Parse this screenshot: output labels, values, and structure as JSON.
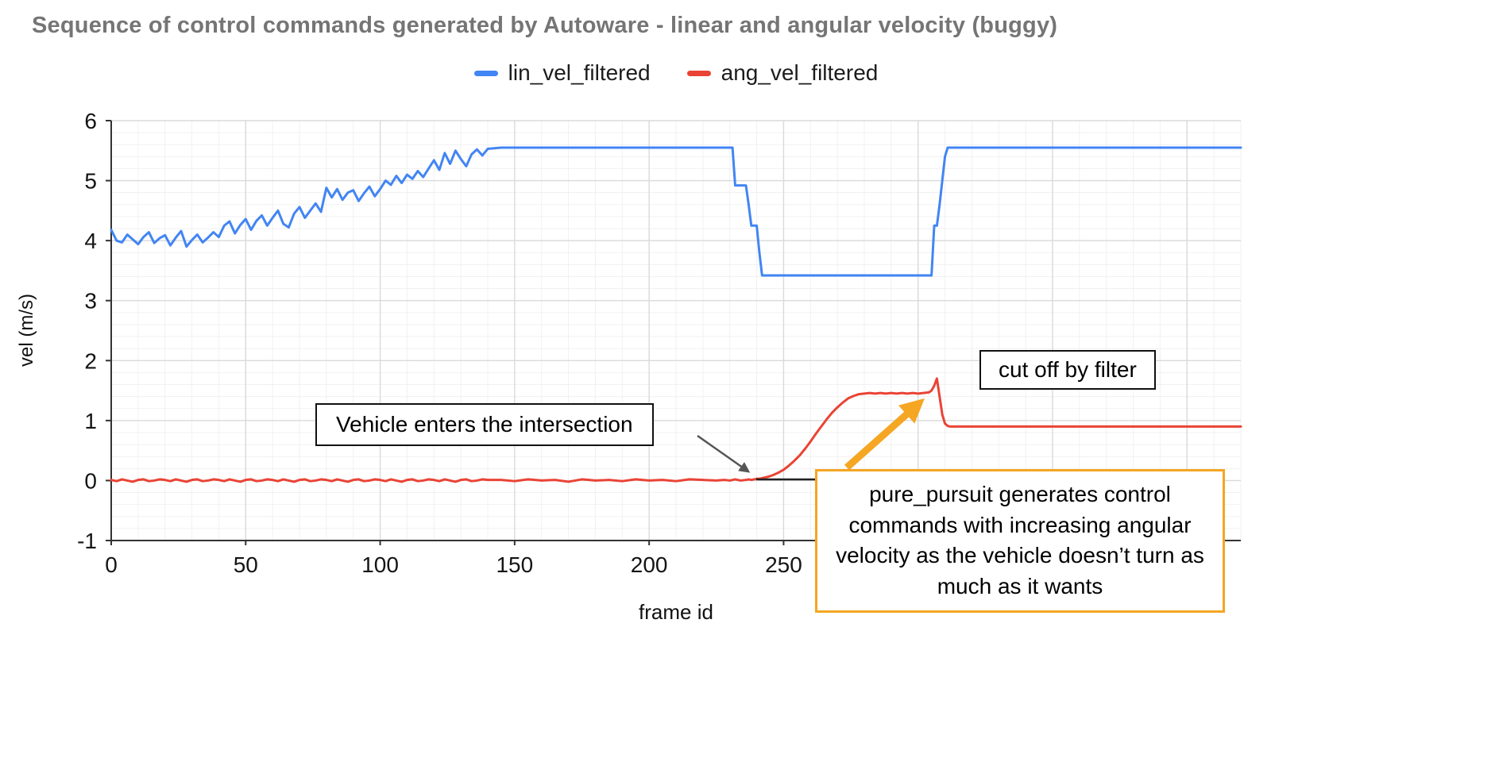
{
  "title": "Sequence of control commands generated by Autoware - linear and angular velocity (buggy)",
  "chart_data": {
    "type": "line",
    "title": "Sequence of control commands generated by Autoware - linear and angular velocity (buggy)",
    "xlabel": "frame id",
    "ylabel": "vel (m/s)",
    "xlim": [
      0,
      420
    ],
    "ylim": [
      -1,
      6
    ],
    "x_ticks": [
      0,
      50,
      100,
      150,
      200,
      250,
      300,
      350,
      400
    ],
    "y_ticks": [
      -1,
      0,
      1,
      2,
      3,
      4,
      5,
      6
    ],
    "grid": true,
    "legend_position": "top-center",
    "x": [
      0,
      2,
      4,
      6,
      8,
      10,
      12,
      14,
      16,
      18,
      20,
      22,
      24,
      26,
      28,
      30,
      32,
      34,
      36,
      38,
      40,
      42,
      44,
      46,
      48,
      50,
      52,
      54,
      56,
      58,
      60,
      62,
      64,
      66,
      68,
      70,
      72,
      74,
      76,
      78,
      80,
      82,
      84,
      86,
      88,
      90,
      92,
      94,
      96,
      98,
      100,
      102,
      104,
      106,
      108,
      110,
      112,
      114,
      116,
      118,
      120,
      122,
      124,
      126,
      128,
      130,
      132,
      134,
      136,
      138,
      140,
      145,
      150,
      155,
      160,
      165,
      170,
      175,
      180,
      185,
      190,
      195,
      200,
      205,
      210,
      215,
      220,
      225,
      228,
      230,
      231,
      232,
      234,
      236,
      237,
      238,
      239,
      240,
      241,
      242,
      243,
      244,
      246,
      248,
      250,
      252,
      254,
      256,
      258,
      260,
      262,
      264,
      266,
      268,
      270,
      272,
      274,
      276,
      278,
      280,
      282,
      284,
      286,
      288,
      290,
      292,
      294,
      296,
      298,
      300,
      302,
      304,
      305,
      306,
      307,
      308,
      309,
      310,
      311,
      312,
      314,
      316,
      324,
      332,
      340,
      348,
      356,
      364,
      372,
      380,
      388,
      396,
      404,
      412,
      420
    ],
    "series": [
      {
        "name": "lin_vel_filtered",
        "color": "#4285f4",
        "values": [
          4.18,
          4.0,
          3.97,
          4.1,
          4.02,
          3.94,
          4.06,
          4.14,
          3.96,
          4.04,
          4.09,
          3.92,
          4.05,
          4.16,
          3.9,
          4.01,
          4.1,
          3.97,
          4.05,
          4.14,
          4.06,
          4.25,
          4.32,
          4.12,
          4.26,
          4.36,
          4.18,
          4.33,
          4.42,
          4.25,
          4.38,
          4.5,
          4.28,
          4.22,
          4.45,
          4.56,
          4.38,
          4.5,
          4.62,
          4.48,
          4.88,
          4.72,
          4.86,
          4.68,
          4.8,
          4.84,
          4.66,
          4.79,
          4.9,
          4.74,
          4.86,
          5.0,
          4.93,
          5.08,
          4.96,
          5.1,
          5.03,
          5.16,
          5.06,
          5.2,
          5.34,
          5.18,
          5.46,
          5.28,
          5.5,
          5.36,
          5.24,
          5.44,
          5.52,
          5.42,
          5.53,
          5.55,
          5.55,
          5.55,
          5.55,
          5.55,
          5.55,
          5.55,
          5.55,
          5.55,
          5.55,
          5.55,
          5.55,
          5.55,
          5.55,
          5.55,
          5.55,
          5.55,
          5.55,
          5.55,
          5.55,
          4.92,
          4.92,
          4.92,
          4.6,
          4.25,
          4.25,
          4.25,
          3.8,
          3.42,
          3.42,
          3.42,
          3.42,
          3.42,
          3.42,
          3.42,
          3.42,
          3.42,
          3.42,
          3.42,
          3.42,
          3.42,
          3.42,
          3.42,
          3.42,
          3.42,
          3.42,
          3.42,
          3.42,
          3.42,
          3.42,
          3.42,
          3.42,
          3.42,
          3.42,
          3.42,
          3.42,
          3.42,
          3.42,
          3.42,
          3.42,
          3.42,
          3.42,
          4.25,
          4.25,
          4.6,
          5.0,
          5.4,
          5.55,
          5.55,
          5.55,
          5.55,
          5.55,
          5.55,
          5.55,
          5.55,
          5.55,
          5.55,
          5.55,
          5.55,
          5.55,
          5.55,
          5.55,
          5.55,
          5.55
        ]
      },
      {
        "name": "ang_vel_filtered",
        "color": "#ea4335",
        "values": [
          0.01,
          -0.01,
          0.02,
          0.0,
          -0.02,
          0.01,
          0.02,
          -0.01,
          0.0,
          0.02,
          0.01,
          -0.01,
          0.02,
          0.0,
          -0.02,
          0.01,
          0.02,
          -0.01,
          0.0,
          0.02,
          0.01,
          -0.01,
          0.02,
          0.0,
          -0.02,
          0.01,
          0.02,
          -0.01,
          0.0,
          0.02,
          0.01,
          -0.01,
          0.02,
          0.0,
          -0.02,
          0.01,
          0.02,
          -0.01,
          0.0,
          0.02,
          0.01,
          -0.01,
          0.02,
          0.0,
          -0.02,
          0.01,
          0.02,
          -0.01,
          0.0,
          0.02,
          0.01,
          -0.01,
          0.02,
          0.0,
          -0.02,
          0.01,
          0.02,
          -0.01,
          0.0,
          0.02,
          0.01,
          -0.01,
          0.02,
          0.0,
          -0.02,
          0.01,
          0.02,
          -0.01,
          0.0,
          0.02,
          0.01,
          0.01,
          -0.01,
          0.02,
          0.0,
          0.01,
          -0.02,
          0.02,
          0.0,
          0.01,
          -0.01,
          0.02,
          0.0,
          0.01,
          -0.01,
          0.02,
          0.01,
          0.0,
          0.01,
          0.0,
          0.01,
          0.02,
          0.0,
          0.01,
          0.02,
          0.01,
          0.02,
          0.03,
          0.03,
          0.04,
          0.05,
          0.06,
          0.09,
          0.13,
          0.18,
          0.25,
          0.33,
          0.42,
          0.53,
          0.65,
          0.78,
          0.9,
          1.02,
          1.13,
          1.22,
          1.3,
          1.37,
          1.41,
          1.44,
          1.45,
          1.46,
          1.45,
          1.46,
          1.45,
          1.46,
          1.45,
          1.46,
          1.45,
          1.46,
          1.45,
          1.46,
          1.47,
          1.5,
          1.58,
          1.7,
          1.4,
          1.1,
          0.95,
          0.91,
          0.9,
          0.9,
          0.9,
          0.9,
          0.9,
          0.9,
          0.9,
          0.9,
          0.9,
          0.9,
          0.9,
          0.9,
          0.9,
          0.9,
          0.9,
          0.9
        ]
      }
    ],
    "annotations": {
      "intersection": {
        "text": "Vehicle enters the intersection"
      },
      "cutoff": {
        "text": "cut off by filter"
      },
      "pure_pursuit": {
        "text": "pure_pursuit generates control commands with increasing angular velocity as the vehicle doesn’t turn as much as it wants"
      }
    }
  }
}
